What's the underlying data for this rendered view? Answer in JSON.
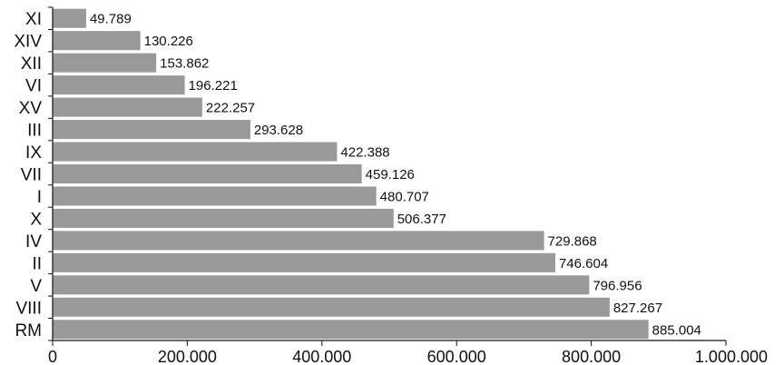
{
  "chart_data": {
    "type": "bar",
    "orientation": "horizontal",
    "categories": [
      "XI",
      "XIV",
      "XII",
      "VI",
      "XV",
      "III",
      "IX",
      "VII",
      "I",
      "X",
      "IV",
      "II",
      "V",
      "VIII",
      "RM"
    ],
    "values": [
      49789,
      130226,
      153862,
      196221,
      222257,
      293628,
      422388,
      459126,
      480707,
      506377,
      729868,
      746604,
      796956,
      827267,
      885004
    ],
    "value_labels": [
      "49.789",
      "130.226",
      "153.862",
      "196.221",
      "222.257",
      "293.628",
      "422.388",
      "459.126",
      "480.707",
      "506.377",
      "729.868",
      "746.604",
      "796.956",
      "827.267",
      "885.004"
    ],
    "xlim": [
      0,
      1000000
    ],
    "x_ticks": [
      0,
      200000,
      400000,
      600000,
      800000,
      1000000
    ],
    "x_tick_labels": [
      "0",
      "200.000",
      "400.000",
      "600.000",
      "800.000",
      "1.000.000"
    ],
    "title": "",
    "xlabel": "",
    "ylabel": "",
    "grid": false,
    "colors": {
      "bar": "#999999",
      "text": "#111111"
    }
  }
}
